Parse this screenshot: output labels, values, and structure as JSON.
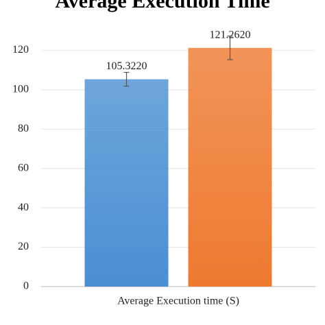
{
  "chart_data": {
    "type": "bar",
    "title": "Average Execution Time",
    "categories": [
      "Average Execution time (S)"
    ],
    "series": [
      {
        "color": "#4a8fd2",
        "values": [
          105.322
        ],
        "value_labels": [
          "105.3220"
        ],
        "errors": [
          3.5
        ]
      },
      {
        "color": "#ee7a30",
        "values": [
          121.262
        ],
        "value_labels": [
          "121.2620"
        ],
        "errors": [
          6
        ]
      }
    ],
    "ylim": [
      0,
      140
    ],
    "yticks": [
      0,
      20,
      40,
      60,
      80,
      100,
      120
    ],
    "grid": true
  }
}
